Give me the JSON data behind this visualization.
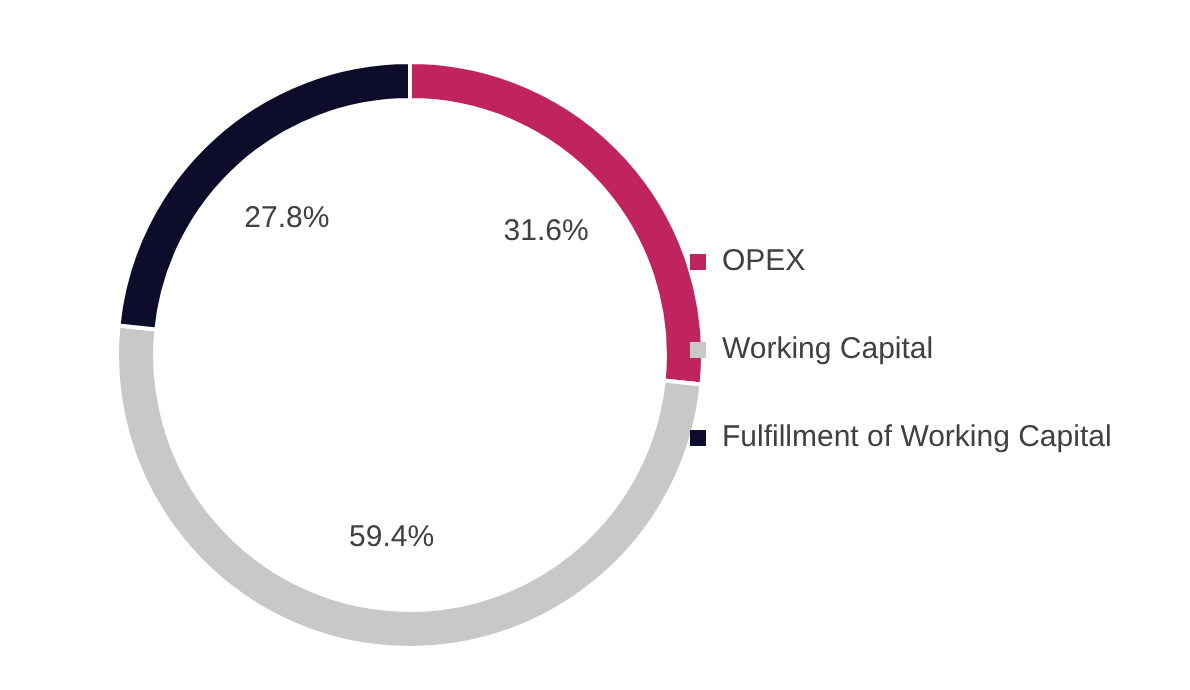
{
  "chart_data": {
    "type": "donut",
    "categories": [
      "OPEX",
      "Working Capital",
      "Fulfillment of Working Capital"
    ],
    "values": [
      31.6,
      59.4,
      27.8
    ],
    "colors": [
      "#c0245f",
      "#c8c8c8",
      "#0d0c2a"
    ],
    "value_labels": [
      "31.6%",
      "59.4%",
      "27.8%"
    ],
    "legend": "right"
  }
}
